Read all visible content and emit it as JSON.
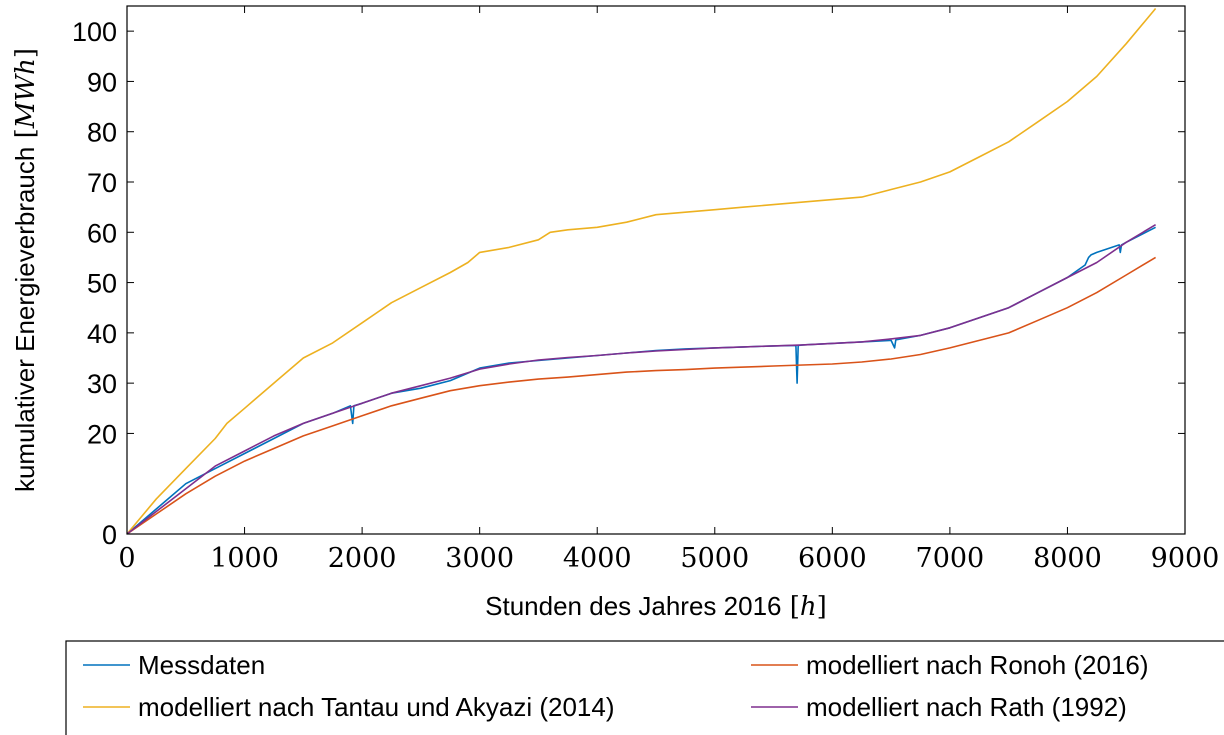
{
  "chart_data": {
    "type": "line",
    "xlabel": {
      "text": "Stunden des Jahres 2016",
      "unit": "h"
    },
    "ylabel": {
      "text": "kumulativer Energieverbrauch",
      "unit": "MWh"
    },
    "xlim": [
      0,
      9000
    ],
    "ylim": [
      0,
      105
    ],
    "x_ticks": [
      0,
      1000,
      2000,
      3000,
      4000,
      5000,
      6000,
      7000,
      8000,
      9000
    ],
    "y_ticks": [
      0,
      20,
      30,
      40,
      50,
      60,
      70,
      80,
      90,
      100
    ],
    "grid": false,
    "legend_position": "bottom",
    "series": [
      {
        "name": "Messdaten",
        "color": "#0072BD",
        "x": [
          0,
          250,
          500,
          750,
          1000,
          1250,
          1500,
          1750,
          1900,
          1920,
          1930,
          2000,
          2250,
          2500,
          2750,
          3000,
          3250,
          3500,
          3750,
          4000,
          4250,
          4500,
          4750,
          5000,
          5250,
          5500,
          5690,
          5700,
          5710,
          5750,
          6000,
          6250,
          6500,
          6530,
          6540,
          6750,
          7000,
          7250,
          7500,
          7750,
          8000,
          8150,
          8180,
          8200,
          8250,
          8440,
          8450,
          8460,
          8500,
          8750
        ],
        "y": [
          0,
          5,
          10,
          13,
          16,
          19,
          22,
          24,
          25.5,
          22,
          25.5,
          26,
          28,
          29,
          30.5,
          33,
          34,
          34.5,
          35,
          35.5,
          36,
          36.5,
          36.8,
          37,
          37.2,
          37.4,
          37.5,
          30,
          37.5,
          37.6,
          37.9,
          38.2,
          38.5,
          37,
          38.6,
          39.5,
          41,
          43,
          45,
          48,
          51,
          53.5,
          55,
          55.5,
          56,
          57.5,
          56,
          57.5,
          58,
          61
        ]
      },
      {
        "name": "modelliert nach Ronoh (2016)",
        "color": "#D95319",
        "x": [
          0,
          250,
          500,
          750,
          1000,
          1250,
          1500,
          1750,
          2000,
          2250,
          2500,
          2750,
          3000,
          3250,
          3500,
          3750,
          4000,
          4250,
          4500,
          4750,
          5000,
          5250,
          5500,
          5750,
          6000,
          6250,
          6500,
          6750,
          7000,
          7250,
          7500,
          7750,
          8000,
          8250,
          8500,
          8750
        ],
        "y": [
          0,
          4,
          8,
          11.5,
          14.5,
          17,
          19.5,
          21.5,
          23.5,
          25.5,
          27,
          28.5,
          29.5,
          30.2,
          30.8,
          31.2,
          31.7,
          32.2,
          32.5,
          32.7,
          33,
          33.2,
          33.4,
          33.6,
          33.8,
          34.2,
          34.8,
          35.7,
          37,
          38.5,
          40,
          42.5,
          45,
          48,
          51.5,
          55
        ]
      },
      {
        "name": "modelliert nach Tantau und Akyazi (2014)",
        "color": "#EDB120",
        "x": [
          0,
          250,
          500,
          750,
          850,
          1000,
          1250,
          1500,
          1750,
          2000,
          2250,
          2500,
          2750,
          2900,
          3000,
          3250,
          3500,
          3600,
          3750,
          4000,
          4250,
          4500,
          4750,
          5000,
          5250,
          5500,
          5750,
          6000,
          6250,
          6500,
          6750,
          7000,
          7250,
          7500,
          7750,
          8000,
          8250,
          8500,
          8750
        ],
        "y": [
          0,
          7,
          13,
          19,
          22,
          25,
          30,
          35,
          38,
          42,
          46,
          49,
          52,
          54,
          56,
          57,
          58.5,
          60,
          60.5,
          61,
          62,
          63.5,
          64,
          64.5,
          65,
          65.5,
          66,
          66.5,
          67,
          68.5,
          70,
          72,
          75,
          78,
          82,
          86,
          91,
          97.5,
          104.5
        ]
      },
      {
        "name": "modelliert nach Rath (1992)",
        "color": "#7E2F8E",
        "x": [
          0,
          250,
          500,
          750,
          1000,
          1250,
          1500,
          1750,
          2000,
          2250,
          2500,
          2750,
          3000,
          3250,
          3500,
          3750,
          4000,
          4250,
          4500,
          4750,
          5000,
          5250,
          5500,
          5750,
          6000,
          6250,
          6500,
          6750,
          7000,
          7250,
          7500,
          7750,
          8000,
          8250,
          8500,
          8750
        ],
        "y": [
          0,
          4.5,
          9,
          13.5,
          16.5,
          19.5,
          22,
          24,
          26,
          28,
          29.5,
          31,
          32.8,
          33.8,
          34.6,
          35.1,
          35.5,
          36,
          36.4,
          36.7,
          37,
          37.2,
          37.4,
          37.6,
          37.9,
          38.2,
          38.8,
          39.5,
          41,
          43,
          45,
          48,
          51,
          54,
          58,
          61.5
        ]
      }
    ]
  }
}
